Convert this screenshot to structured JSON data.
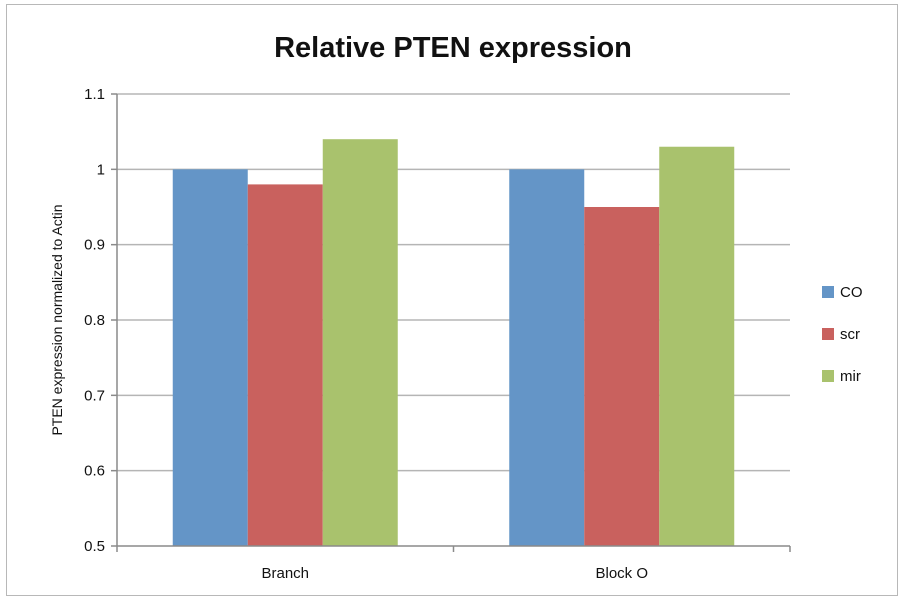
{
  "chart_data": {
    "type": "bar",
    "title": "Relative PTEN expression",
    "xlabel": "",
    "ylabel": "PTEN expression normalized to Actin",
    "categories": [
      "Branch",
      "Block O"
    ],
    "series": [
      {
        "name": "CO",
        "color": "#6495c7",
        "values": [
          1.0,
          1.0
        ]
      },
      {
        "name": "scr",
        "color": "#c9615e",
        "values": [
          0.98,
          0.95
        ]
      },
      {
        "name": "mir",
        "color": "#a9c26d",
        "values": [
          1.04,
          1.03
        ]
      }
    ],
    "ylim": [
      0.5,
      1.1
    ],
    "yticks": [
      "0.5",
      "0.6",
      "0.7",
      "0.8",
      "0.9",
      "1",
      "1.1"
    ],
    "grid": true,
    "legend_position": "right"
  }
}
